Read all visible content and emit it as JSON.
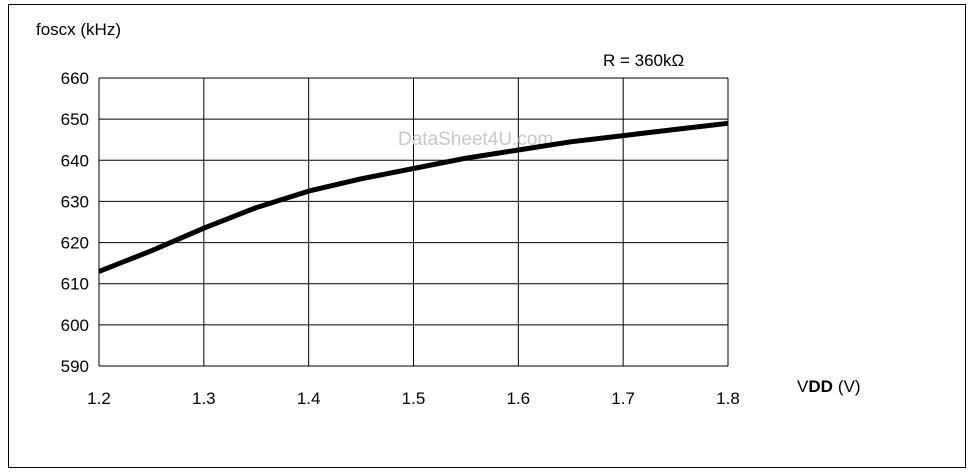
{
  "chart_data": {
    "type": "line",
    "ylabel": "foscx (kHz)",
    "xlabel_prefix": "V",
    "xlabel_sub": "DD",
    "xlabel_unit": "(V)",
    "annotation": "R = 360kΩ",
    "watermark": "DataSheet4U.com",
    "xlim": [
      1.2,
      1.8
    ],
    "ylim": [
      590,
      660
    ],
    "xticks": [
      "1.2",
      "1.3",
      "1.4",
      "1.5",
      "1.6",
      "1.7",
      "1.8"
    ],
    "yticks": [
      "660",
      "650",
      "640",
      "630",
      "620",
      "610",
      "600",
      "590"
    ],
    "grid": true,
    "series": [
      {
        "x": [
          1.2,
          1.25,
          1.3,
          1.35,
          1.4,
          1.45,
          1.5,
          1.55,
          1.6,
          1.65,
          1.7,
          1.75,
          1.8
        ],
        "y": [
          613,
          618,
          623.5,
          628.5,
          632.5,
          635.5,
          638,
          640.5,
          642.5,
          644.5,
          646,
          647.5,
          649
        ],
        "color": "#000000"
      }
    ]
  }
}
